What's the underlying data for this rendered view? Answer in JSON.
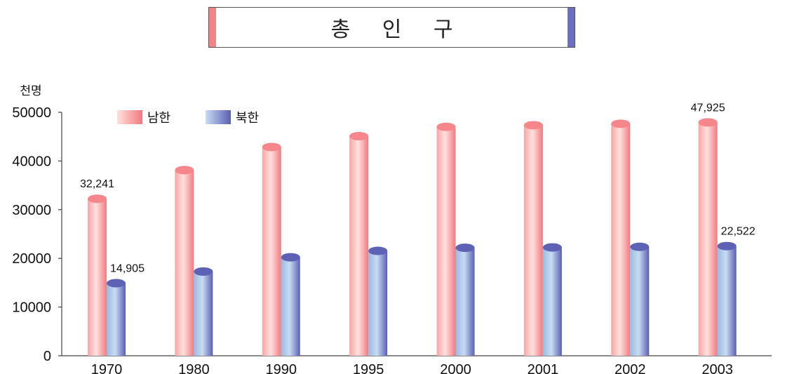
{
  "title": "총 인 구",
  "colors": {
    "south": "#f08488",
    "north": "#6a6fbf"
  },
  "chart_data": {
    "type": "bar",
    "unit_label": "천명",
    "categories": [
      "1970",
      "1980",
      "1990",
      "1995",
      "2000",
      "2001",
      "2002",
      "2003"
    ],
    "ylim": [
      0,
      50000
    ],
    "yticks": [
      "0",
      "10000",
      "20000",
      "30000",
      "40000",
      "50000"
    ],
    "legend_position": "top-left",
    "series": [
      {
        "name": "남한",
        "values": [
          32241,
          38124,
          42869,
          45093,
          47008,
          47343,
          47640,
          47925
        ],
        "labels": [
          "32,241",
          "",
          "",
          "",
          "",
          "",
          "",
          "47,925"
        ]
      },
      {
        "name": "북한",
        "values": [
          14905,
          17298,
          20221,
          21543,
          22175,
          22253,
          22369,
          22522
        ],
        "labels": [
          "14,905",
          "",
          "",
          "",
          "",
          "",
          "",
          "22,522"
        ]
      }
    ]
  }
}
